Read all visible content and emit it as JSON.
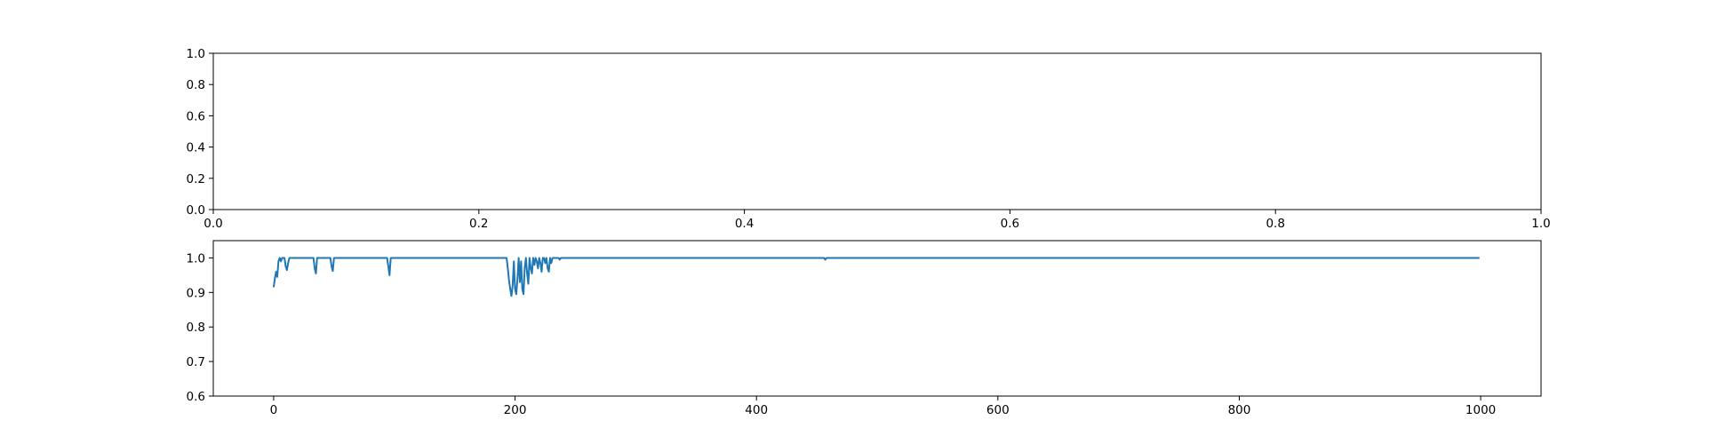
{
  "chart_data": [
    {
      "type": "empty",
      "title": "",
      "xlabel": "",
      "ylabel": "",
      "xlim": [
        0.0,
        1.0
      ],
      "ylim": [
        0.0,
        1.0
      ],
      "xticks": [
        "0.0",
        "0.2",
        "0.4",
        "0.6",
        "0.8",
        "1.0"
      ],
      "yticks": [
        "0.0",
        "0.2",
        "0.4",
        "0.6",
        "0.8",
        "1.0"
      ],
      "grid": false,
      "series": []
    },
    {
      "type": "line",
      "title": "",
      "xlabel": "",
      "ylabel": "",
      "xlim": [
        -50,
        1050
      ],
      "ylim": [
        0.6,
        1.05
      ],
      "xticks": [
        "0",
        "200",
        "400",
        "600",
        "800",
        "1000"
      ],
      "yticks": [
        "0.6",
        "0.7",
        "0.8",
        "0.9",
        "1.0"
      ],
      "grid": false,
      "line_color": "#1f77b4",
      "series": [
        {
          "points": [
            [
              0,
              0.915
            ],
            [
              1,
              0.94
            ],
            [
              2,
              0.96
            ],
            [
              3,
              0.945
            ],
            [
              4,
              0.99
            ],
            [
              5,
              1.0
            ],
            [
              6,
              0.99
            ],
            [
              7,
              1.0
            ],
            [
              8,
              1.0
            ],
            [
              9,
              1.0
            ],
            [
              10,
              0.975
            ],
            [
              11,
              0.965
            ],
            [
              12,
              0.985
            ],
            [
              13,
              1.0
            ],
            [
              14,
              1.0
            ],
            [
              15,
              1.0
            ],
            [
              33,
              1.0
            ],
            [
              34,
              0.97
            ],
            [
              35,
              0.955
            ],
            [
              36,
              1.0
            ],
            [
              47,
              1.0
            ],
            [
              48,
              0.975
            ],
            [
              49,
              0.962
            ],
            [
              50,
              1.0
            ],
            [
              94,
              1.0
            ],
            [
              95,
              0.975
            ],
            [
              96,
              0.95
            ],
            [
              97,
              1.0
            ],
            [
              193,
              1.0
            ],
            [
              194,
              0.97
            ],
            [
              195,
              0.935
            ],
            [
              196,
              0.91
            ],
            [
              197,
              0.89
            ],
            [
              198,
              0.92
            ],
            [
              199,
              0.99
            ],
            [
              200,
              0.91
            ],
            [
              201,
              0.895
            ],
            [
              202,
              0.94
            ],
            [
              203,
              1.0
            ],
            [
              204,
              0.93
            ],
            [
              205,
              0.99
            ],
            [
              206,
              0.91
            ],
            [
              207,
              0.895
            ],
            [
              208,
              0.97
            ],
            [
              209,
              1.0
            ],
            [
              210,
              0.955
            ],
            [
              211,
              0.925
            ],
            [
              212,
              1.0
            ],
            [
              213,
              0.97
            ],
            [
              214,
              0.955
            ],
            [
              215,
              1.0
            ],
            [
              216,
              0.98
            ],
            [
              217,
              1.0
            ],
            [
              218,
              0.99
            ],
            [
              219,
              0.97
            ],
            [
              220,
              1.0
            ],
            [
              221,
              0.985
            ],
            [
              222,
              0.96
            ],
            [
              223,
              1.0
            ],
            [
              224,
              1.0
            ],
            [
              225,
              0.985
            ],
            [
              226,
              1.0
            ],
            [
              227,
              0.97
            ],
            [
              228,
              0.96
            ],
            [
              229,
              1.0
            ],
            [
              230,
              0.985
            ],
            [
              231,
              1.0
            ],
            [
              236,
              1.0
            ],
            [
              237,
              0.995
            ],
            [
              238,
              1.0
            ],
            [
              456,
              1.0
            ],
            [
              457,
              0.995
            ],
            [
              458,
              1.0
            ],
            [
              999,
              1.0
            ]
          ]
        }
      ]
    }
  ]
}
